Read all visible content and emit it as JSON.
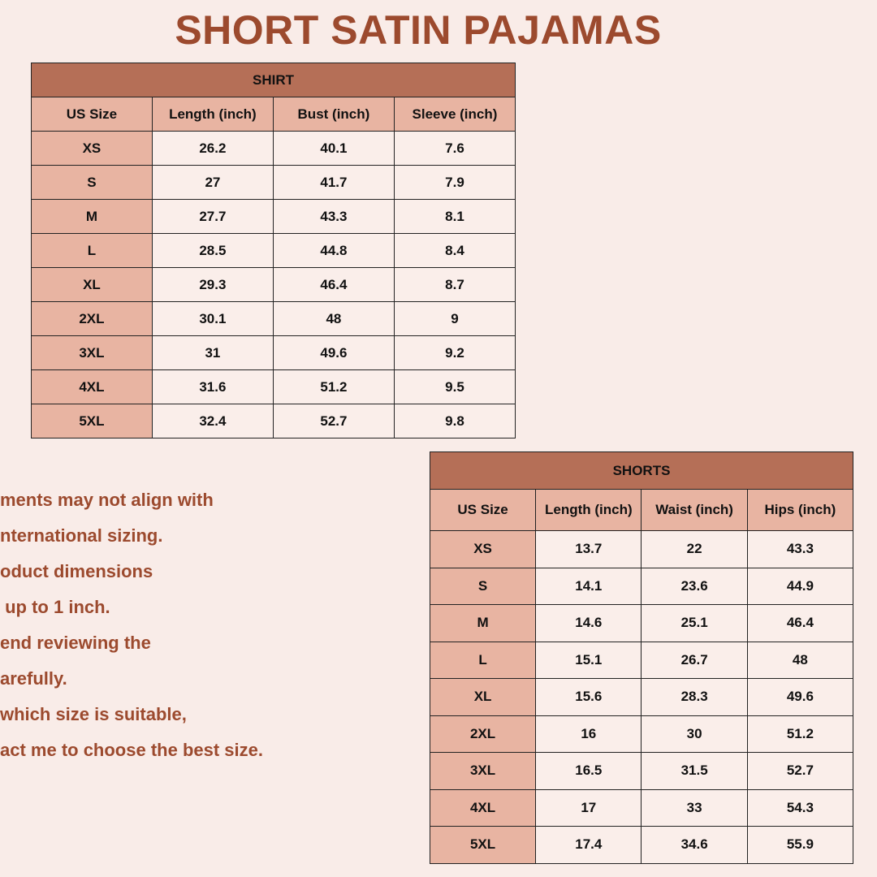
{
  "title": "SHORT SATIN PAJAMAS",
  "colors": {
    "background": "#f9ece8",
    "title": "#9c4a2e",
    "table_caption": "#b56f57",
    "table_header": "#e8b4a2"
  },
  "shirt": {
    "caption": "SHIRT",
    "headers": [
      "US Size",
      "Length (inch)",
      "Bust (inch)",
      "Sleeve (inch)"
    ],
    "rows": [
      [
        "XS",
        "26.2",
        "40.1",
        "7.6"
      ],
      [
        "S",
        "27",
        "41.7",
        "7.9"
      ],
      [
        "M",
        "27.7",
        "43.3",
        "8.1"
      ],
      [
        "L",
        "28.5",
        "44.8",
        "8.4"
      ],
      [
        "XL",
        "29.3",
        "46.4",
        "8.7"
      ],
      [
        "2XL",
        "30.1",
        "48",
        "9"
      ],
      [
        "3XL",
        "31",
        "49.6",
        "9.2"
      ],
      [
        "4XL",
        "31.6",
        "51.2",
        "9.5"
      ],
      [
        "5XL",
        "32.4",
        "52.7",
        "9.8"
      ]
    ]
  },
  "shorts": {
    "caption": "SHORTS",
    "headers": [
      "US Size",
      "Length (inch)",
      "Waist (inch)",
      "Hips (inch)"
    ],
    "rows": [
      [
        "XS",
        "13.7",
        "22",
        "43.3"
      ],
      [
        "S",
        "14.1",
        "23.6",
        "44.9"
      ],
      [
        "M",
        "14.6",
        "25.1",
        "46.4"
      ],
      [
        "L",
        "15.1",
        "26.7",
        "48"
      ],
      [
        "XL",
        "15.6",
        "28.3",
        "49.6"
      ],
      [
        "2XL",
        "16",
        "30",
        "51.2"
      ],
      [
        "3XL",
        "16.5",
        "31.5",
        "52.7"
      ],
      [
        "4XL",
        "17",
        "33",
        "54.3"
      ],
      [
        "5XL",
        "17.4",
        "34.6",
        "55.9"
      ]
    ]
  },
  "note_lines": [
    "ments may not align with",
    "nternational sizing.",
    "oduct dimensions",
    " up to 1 inch.",
    "end reviewing the",
    "arefully.",
    "which size is suitable,",
    "act me to choose the best size."
  ]
}
